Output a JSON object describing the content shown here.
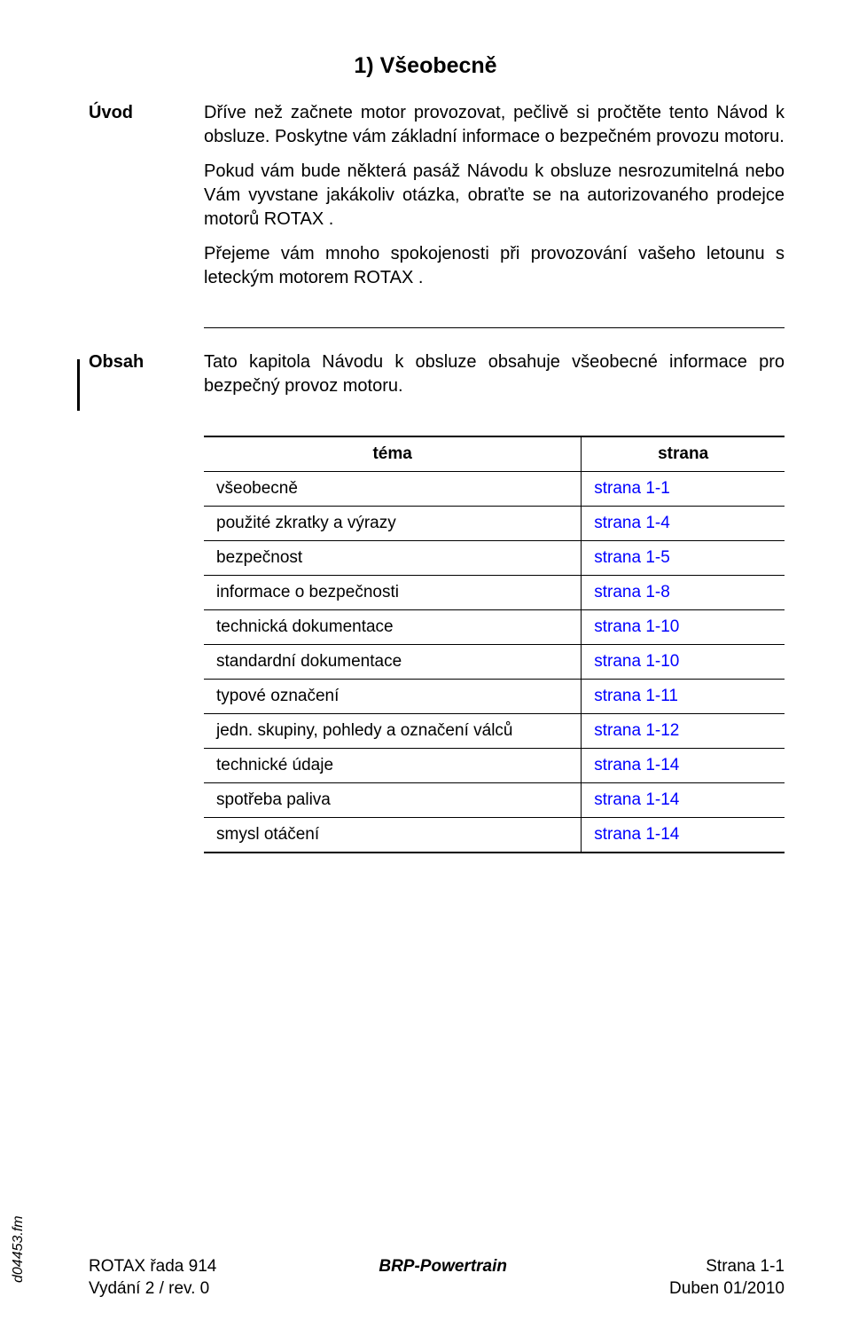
{
  "title": "1) Všeobecně",
  "sections": {
    "uvod": {
      "label": "Úvod",
      "paragraphs": [
        "Dříve než začnete motor provozovat, pečlivě si pročtěte tento Návod k obsluze. Poskytne vám základní informace o bezpečném provozu motoru.",
        "Pokud vám bude některá pasáž Návodu k obsluze nesrozumitelná nebo Vám vyvstane jakákoliv otázka, obraťte se na autorizovaného prodejce motorů ROTAX .",
        "Přejeme vám mnoho spokojenosti při provozování vašeho letounu s leteckým motorem ROTAX ."
      ]
    },
    "obsah": {
      "label": "Obsah",
      "intro": "Tato kapitola Návodu k obsluze obsahuje všeobecné informace pro bezpečný provoz motoru."
    }
  },
  "table": {
    "headers": [
      "téma",
      "strana"
    ],
    "rows": [
      {
        "topic": "všeobecně",
        "page": "strana  1-1"
      },
      {
        "topic": "použité zkratky a výrazy",
        "page": "strana  1-4"
      },
      {
        "topic": "bezpečnost",
        "page": "strana  1-5"
      },
      {
        "topic": "informace o bezpečnosti",
        "page": "strana  1-8"
      },
      {
        "topic": "technická dokumentace",
        "page": "strana  1-10"
      },
      {
        "topic": "standardní dokumentace",
        "page": "strana  1-10"
      },
      {
        "topic": "typové označení",
        "page": "strana  1-11"
      },
      {
        "topic": "jedn. skupiny, pohledy a označení válců",
        "page": "strana  1-12"
      },
      {
        "topic": "technické údaje",
        "page": "strana  1-14"
      },
      {
        "topic": "spotřeba paliva",
        "page": "strana  1-14"
      },
      {
        "topic": "smysl otáčení",
        "page": "strana  1-14"
      }
    ]
  },
  "footer": {
    "left_line1": "ROTAX řada 914",
    "left_line2": "Vydání 2 / rev. 0",
    "center": "BRP-Powertrain",
    "right_line1": "Strana 1-1",
    "right_line2": "Duben 01/2010"
  },
  "side_text": "d04453.fm",
  "colors": {
    "link": "#0000ff",
    "text": "#000000",
    "background": "#ffffff"
  }
}
